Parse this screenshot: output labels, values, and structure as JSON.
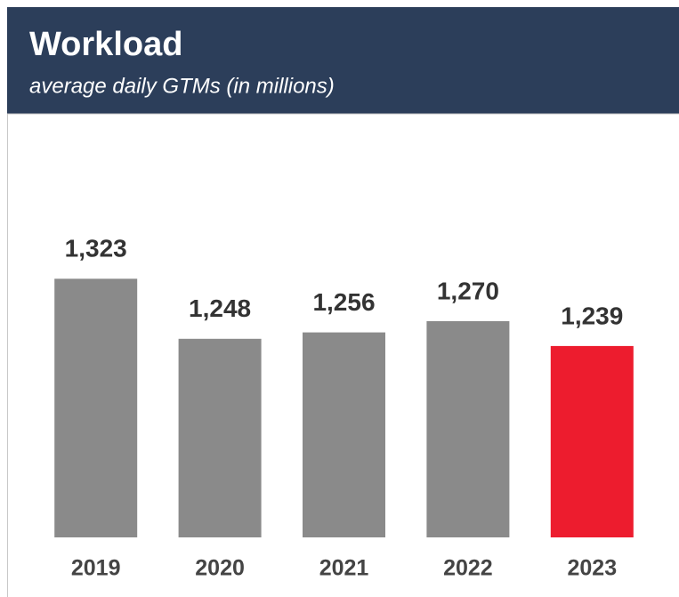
{
  "chart_data": {
    "type": "bar",
    "title": "Workload",
    "subtitle": "average daily GTMs (in millions)",
    "categories": [
      "2019",
      "2020",
      "2021",
      "2022",
      "2023"
    ],
    "values": [
      1323,
      1248,
      1256,
      1270,
      1239
    ],
    "value_labels": [
      "1,323",
      "1,248",
      "1,256",
      "1,270",
      "1,239"
    ],
    "colors": [
      "#8a8a8a",
      "#8a8a8a",
      "#8a8a8a",
      "#8a8a8a",
      "#ed1c2e"
    ],
    "ylim": [
      1000,
      1400
    ]
  }
}
